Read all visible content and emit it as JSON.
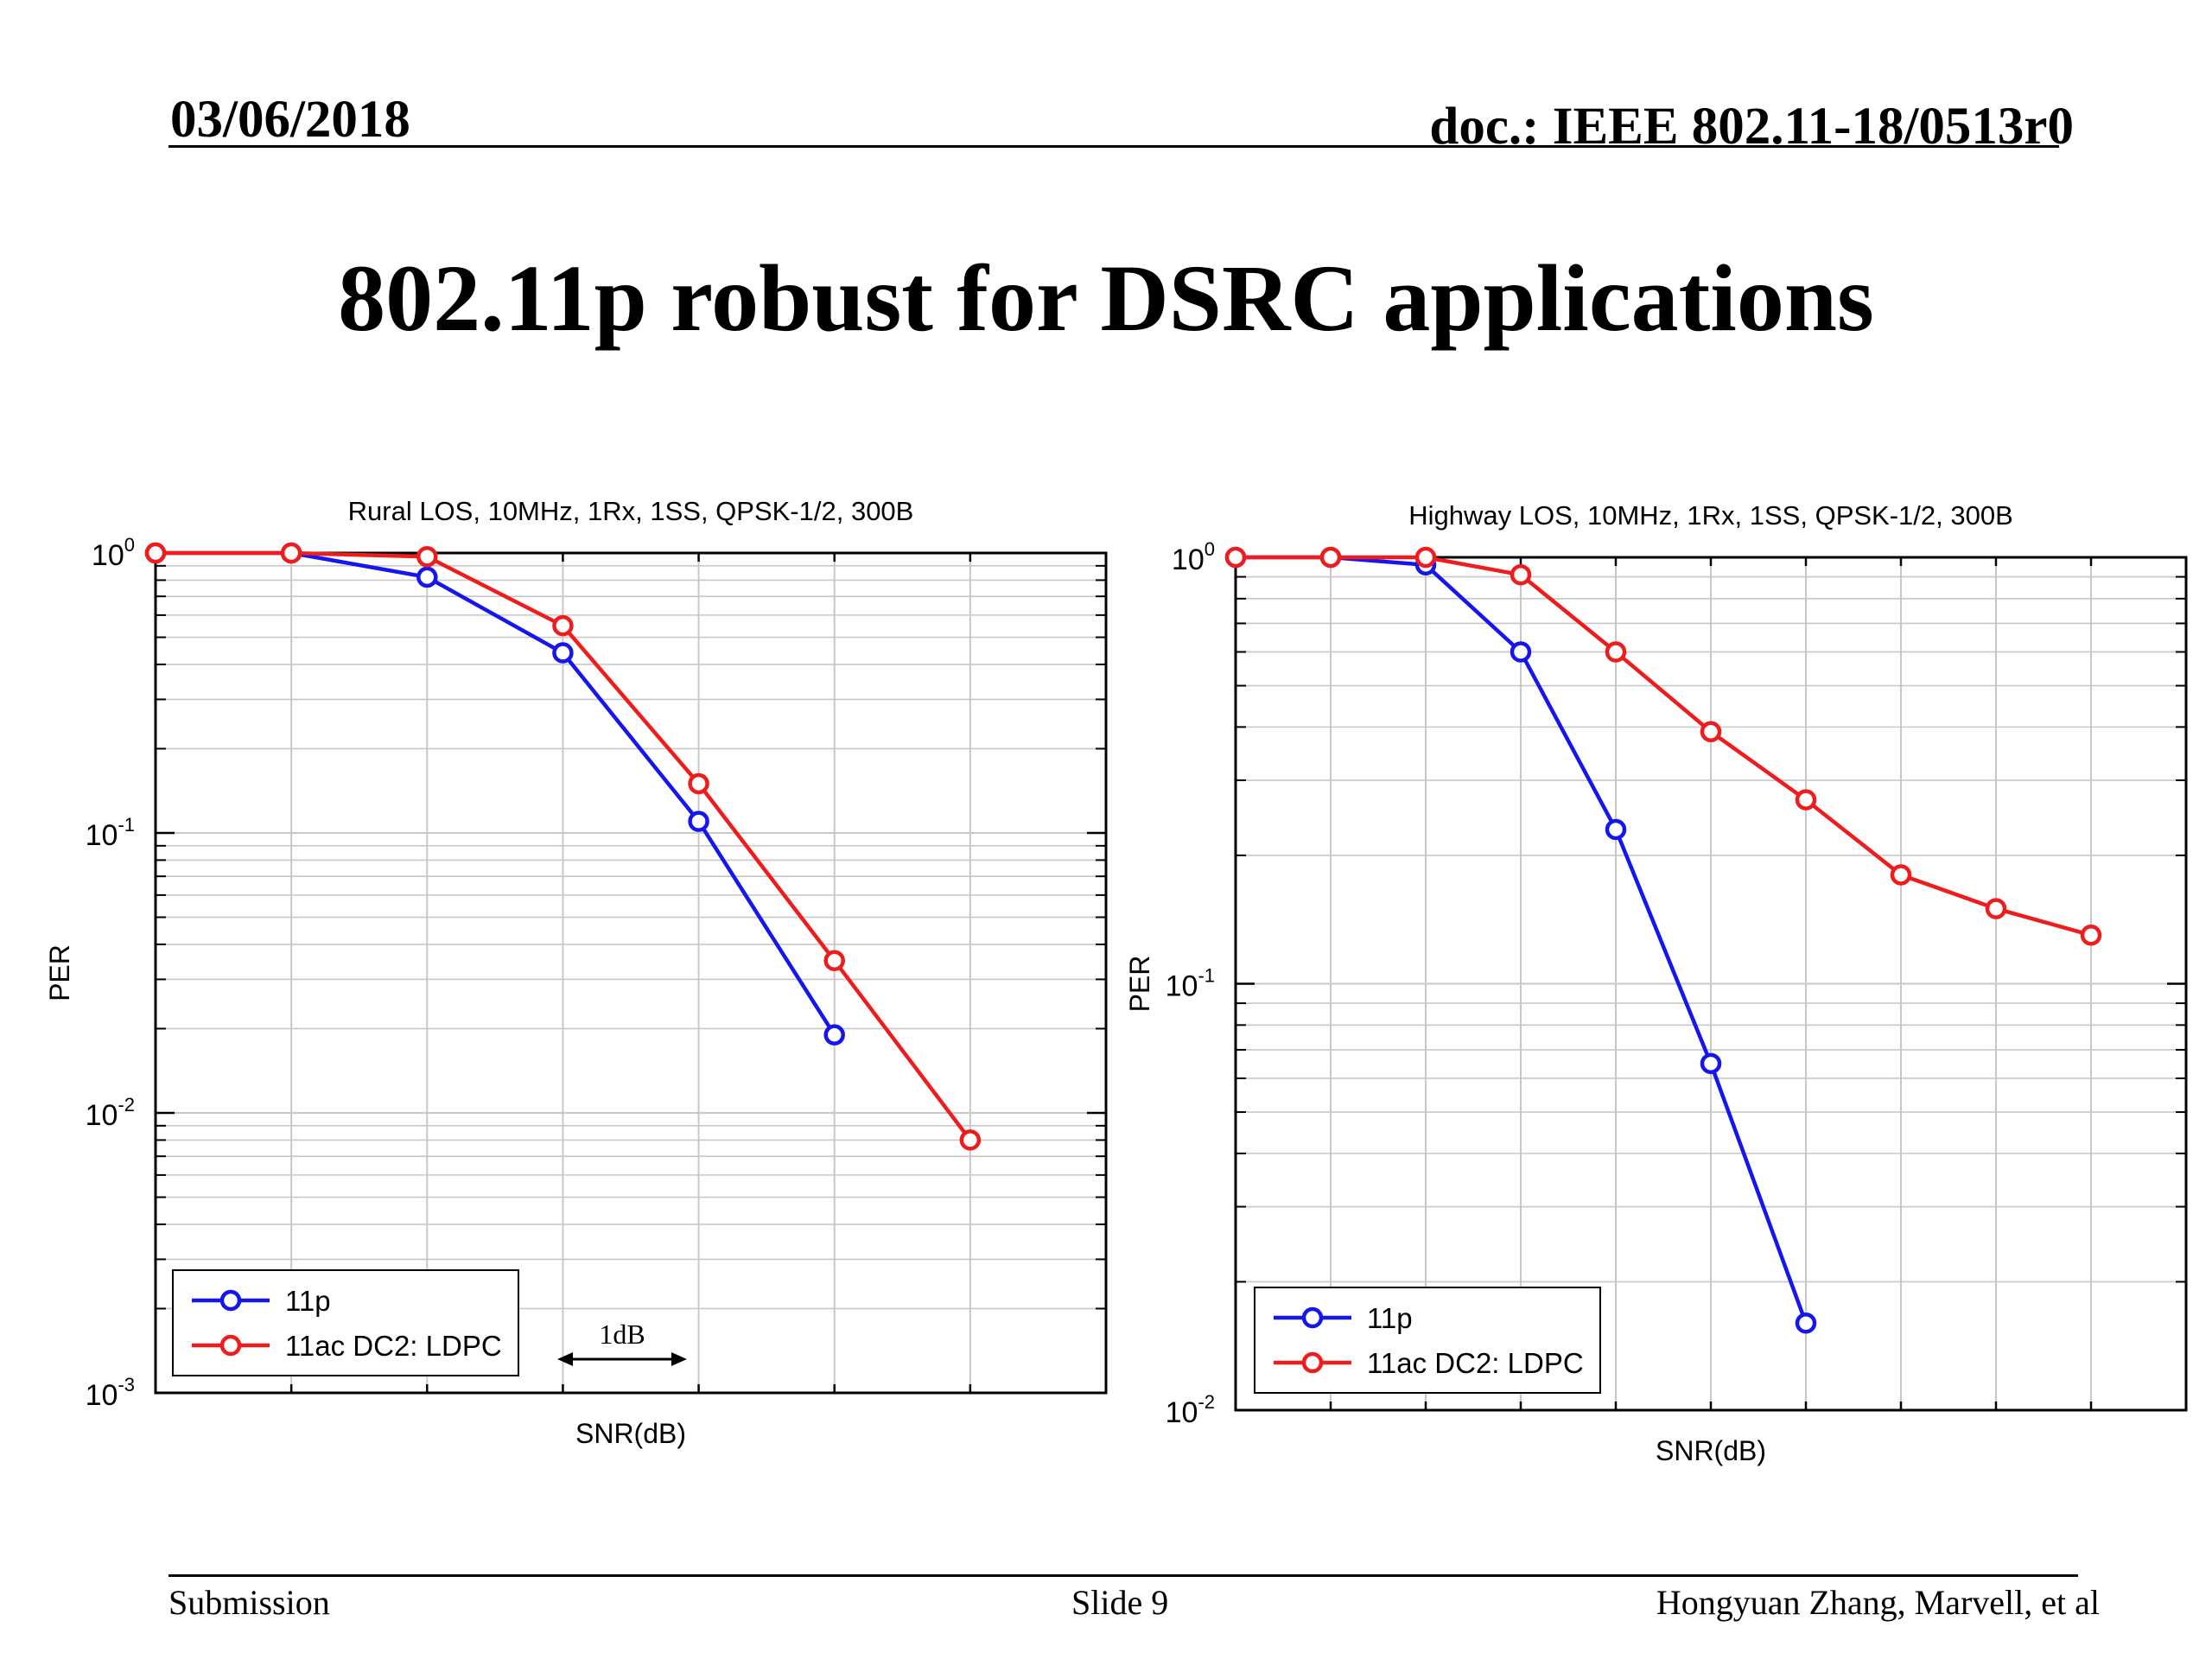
{
  "header": {
    "date": "03/06/2018",
    "doc": "doc.: IEEE 802.11-18/0513r0"
  },
  "slide": {
    "title": "802.11p robust for DSRC applications"
  },
  "footer": {
    "left": "Submission",
    "center": "Slide 9",
    "right": "Hongyuan Zhang, Marvell, et al"
  },
  "colors": {
    "series_11p": "#1515ee",
    "series_11ac": "#ee1c1c",
    "grid": "#c8c8c8"
  },
  "chart_data": [
    {
      "type": "line",
      "title": "Rural LOS, 10MHz, 1Rx, 1SS, QPSK-1/2, 300B",
      "xlabel": "SNR(dB)",
      "ylabel": "PER",
      "yscale": "log",
      "ylim": [
        0.001,
        1
      ],
      "xlim": [
        0,
        7
      ],
      "yticks": [
        "10^0",
        "10^-1",
        "10^-2",
        "10^-3"
      ],
      "grid": true,
      "legend_position": "bottom-left",
      "annotation": "1dB",
      "series": [
        {
          "name": "11p",
          "x": [
            0,
            1,
            2,
            3,
            4,
            5
          ],
          "y": [
            1.0,
            1.0,
            0.82,
            0.44,
            0.11,
            0.019
          ]
        },
        {
          "name": "11ac DC2: LDPC",
          "x": [
            0,
            1,
            2,
            3,
            4,
            5,
            6
          ],
          "y": [
            1.0,
            1.0,
            0.97,
            0.55,
            0.15,
            0.035,
            0.008
          ]
        }
      ]
    },
    {
      "type": "line",
      "title": "Highway LOS, 10MHz, 1Rx, 1SS, QPSK-1/2, 300B",
      "xlabel": "SNR(dB)",
      "ylabel": "PER",
      "yscale": "log",
      "ylim": [
        0.01,
        1
      ],
      "xlim": [
        0,
        10
      ],
      "yticks": [
        "10^0",
        "10^-1",
        "10^-2"
      ],
      "grid": true,
      "legend_position": "bottom-left",
      "series": [
        {
          "name": "11p",
          "x": [
            0,
            1,
            2,
            3,
            4,
            5,
            6
          ],
          "y": [
            1.0,
            1.0,
            0.96,
            0.6,
            0.23,
            0.065,
            0.016
          ]
        },
        {
          "name": "11ac DC2: LDPC",
          "x": [
            0,
            1,
            2,
            3,
            4,
            5,
            6,
            7,
            8,
            9
          ],
          "y": [
            1.0,
            1.0,
            1.0,
            0.91,
            0.6,
            0.39,
            0.27,
            0.18,
            0.15,
            0.13
          ]
        }
      ]
    }
  ]
}
